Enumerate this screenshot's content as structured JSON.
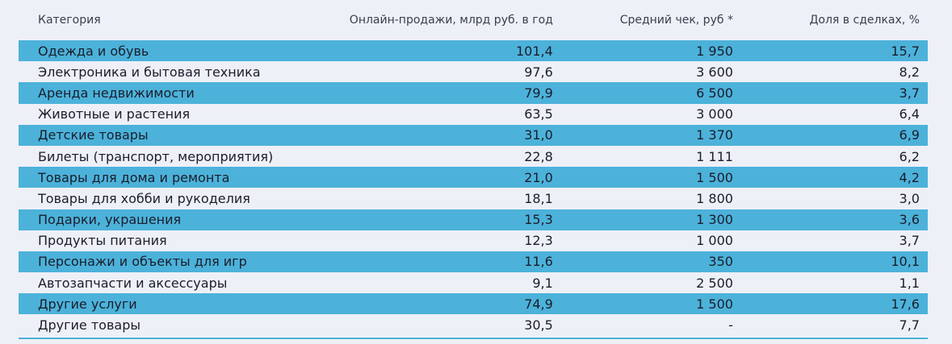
{
  "table": {
    "headers": [
      "Категория",
      "Онлайн-продажи, млрд руб. в год",
      "Средний чек, руб *",
      "Доля в сделках, %"
    ],
    "rows": [
      [
        "Одежда и обувь",
        "101,4",
        "1 950",
        "15,7"
      ],
      [
        "Электроника и бытовая техника",
        "97,6",
        "3 600",
        "8,2"
      ],
      [
        "Аренда недвижимости",
        "79,9",
        "6 500",
        "3,7"
      ],
      [
        "Животные и растения",
        "63,5",
        "3 000",
        "6,4"
      ],
      [
        "Детские товары",
        "31,0",
        "1 370",
        "6,9"
      ],
      [
        "Билеты (транспорт, мероприятия)",
        "22,8",
        "1 111",
        "6,2"
      ],
      [
        "Товары для дома и ремонта",
        "21,0",
        "1 500",
        "4,2"
      ],
      [
        "Товары для хобби и рукоделия",
        "18,1",
        "1 800",
        "3,0"
      ],
      [
        "Подарки, украшения",
        "15,3",
        "1 300",
        "3,6"
      ],
      [
        "Продукты питания",
        "12,3",
        "1 000",
        "3,7"
      ],
      [
        "Персонажи и объекты для игр",
        "11,6",
        "350",
        "10,1"
      ],
      [
        "Автозапчасти и аксессуары",
        "9,1",
        "2 500",
        "1,1"
      ],
      [
        "Другие услуги",
        "74,9",
        "1 500",
        "17,6"
      ],
      [
        "Другие товары",
        "30,5",
        "-",
        "7,7"
      ]
    ]
  },
  "colors": {
    "row_shade": "#4cb2da",
    "background": "#eef0f7"
  }
}
